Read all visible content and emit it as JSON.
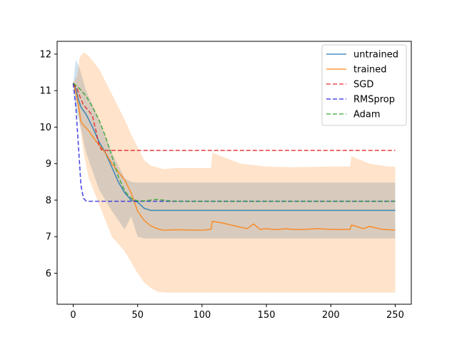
{
  "chart_data": {
    "type": "line",
    "title": "",
    "xlabel": "",
    "ylabel": "",
    "xlim": [
      -12.5,
      262.5
    ],
    "ylim": [
      5.15,
      12.35
    ],
    "xticks": [
      0,
      50,
      100,
      150,
      200,
      250
    ],
    "yticks": [
      6,
      7,
      8,
      9,
      10,
      11,
      12
    ],
    "grid": false,
    "legend_position": "top-right",
    "bands": [
      {
        "series": "untrained",
        "color": "#1f77b4",
        "opacity": 0.22,
        "x": [
          0,
          2,
          5,
          10,
          20,
          30,
          40,
          45,
          50,
          55,
          60,
          80,
          120,
          160,
          200,
          250
        ],
        "upper": [
          11.2,
          11.85,
          11.6,
          11.0,
          10.2,
          9.3,
          8.6,
          8.5,
          8.48,
          8.48,
          8.48,
          8.48,
          8.48,
          8.48,
          8.48,
          8.48
        ],
        "lower": [
          11.2,
          10.5,
          10.1,
          9.3,
          8.3,
          7.7,
          7.2,
          7.55,
          7.0,
          6.95,
          6.95,
          6.95,
          6.95,
          6.95,
          6.95,
          6.95
        ]
      },
      {
        "series": "trained",
        "color": "#ff7f0e",
        "opacity": 0.22,
        "x": [
          0,
          3,
          5,
          8,
          12,
          20,
          30,
          40,
          45,
          50,
          55,
          60,
          65,
          70,
          80,
          100,
          107,
          108,
          115,
          130,
          150,
          170,
          200,
          215,
          216,
          230,
          245,
          250
        ],
        "upper": [
          11.2,
          11.4,
          11.9,
          12.05,
          11.95,
          11.6,
          10.9,
          10.2,
          9.8,
          9.45,
          9.1,
          8.95,
          8.9,
          8.85,
          8.88,
          8.88,
          8.88,
          9.3,
          9.2,
          9.0,
          8.92,
          8.9,
          8.92,
          8.92,
          9.2,
          9.0,
          8.92,
          8.92
        ],
        "lower": [
          11.2,
          10.6,
          10.1,
          9.3,
          8.6,
          7.9,
          7.0,
          6.6,
          6.3,
          6.0,
          5.75,
          5.6,
          5.5,
          5.47,
          5.47,
          5.47,
          5.47,
          5.47,
          5.47,
          5.47,
          5.47,
          5.47,
          5.47,
          5.47,
          5.47,
          5.47,
          5.47,
          5.47
        ]
      }
    ],
    "series": [
      {
        "name": "untrained",
        "color": "#1f77b4",
        "style": "solid",
        "x": [
          0,
          2,
          4,
          6,
          8,
          10,
          15,
          20,
          25,
          30,
          35,
          40,
          45,
          50,
          55,
          60,
          80,
          120,
          160,
          200,
          250
        ],
        "y": [
          11.2,
          11.05,
          10.75,
          10.55,
          10.45,
          10.35,
          10.0,
          9.6,
          9.3,
          8.9,
          8.5,
          8.2,
          8.0,
          7.95,
          7.78,
          7.72,
          7.72,
          7.72,
          7.72,
          7.72,
          7.72
        ]
      },
      {
        "name": "trained",
        "color": "#ff7f0e",
        "style": "solid",
        "x": [
          0,
          2,
          4,
          6,
          8,
          12,
          18,
          25,
          30,
          40,
          45,
          50,
          55,
          60,
          65,
          70,
          80,
          100,
          107,
          108,
          115,
          125,
          135,
          140,
          145,
          150,
          155,
          160,
          165,
          170,
          180,
          190,
          200,
          210,
          215,
          216,
          220,
          225,
          230,
          240,
          250
        ],
        "y": [
          11.2,
          10.95,
          10.6,
          10.15,
          10.05,
          9.9,
          9.6,
          9.3,
          9.0,
          8.55,
          8.2,
          7.7,
          7.45,
          7.3,
          7.22,
          7.18,
          7.19,
          7.18,
          7.2,
          7.42,
          7.38,
          7.3,
          7.22,
          7.35,
          7.2,
          7.22,
          7.2,
          7.2,
          7.22,
          7.2,
          7.2,
          7.22,
          7.2,
          7.2,
          7.2,
          7.32,
          7.28,
          7.22,
          7.28,
          7.2,
          7.18
        ]
      },
      {
        "name": "SGD",
        "color": "#e82020",
        "style": "dashed",
        "x": [
          0,
          3,
          5,
          8,
          12,
          15,
          18,
          20,
          22,
          25,
          250
        ],
        "y": [
          11.2,
          11.05,
          10.85,
          10.6,
          10.45,
          10.3,
          9.85,
          9.5,
          9.38,
          9.36,
          9.36
        ]
      },
      {
        "name": "RMSprop",
        "color": "#1f1fe0",
        "style": "dashed",
        "x": [
          0,
          2,
          4,
          6,
          8,
          10,
          12,
          250
        ],
        "y": [
          11.2,
          10.55,
          9.5,
          8.4,
          8.05,
          7.98,
          7.97,
          7.97
        ]
      },
      {
        "name": "Adam",
        "color": "#2ca02c",
        "style": "dashed",
        "x": [
          0,
          5,
          10,
          15,
          20,
          25,
          30,
          35,
          40,
          45,
          50,
          55,
          60,
          65,
          70,
          75,
          80,
          250
        ],
        "y": [
          11.2,
          11.05,
          10.85,
          10.55,
          10.2,
          9.75,
          9.2,
          8.65,
          8.25,
          8.05,
          7.98,
          7.98,
          8.0,
          8.02,
          8.0,
          7.98,
          7.97,
          7.97
        ]
      }
    ]
  }
}
